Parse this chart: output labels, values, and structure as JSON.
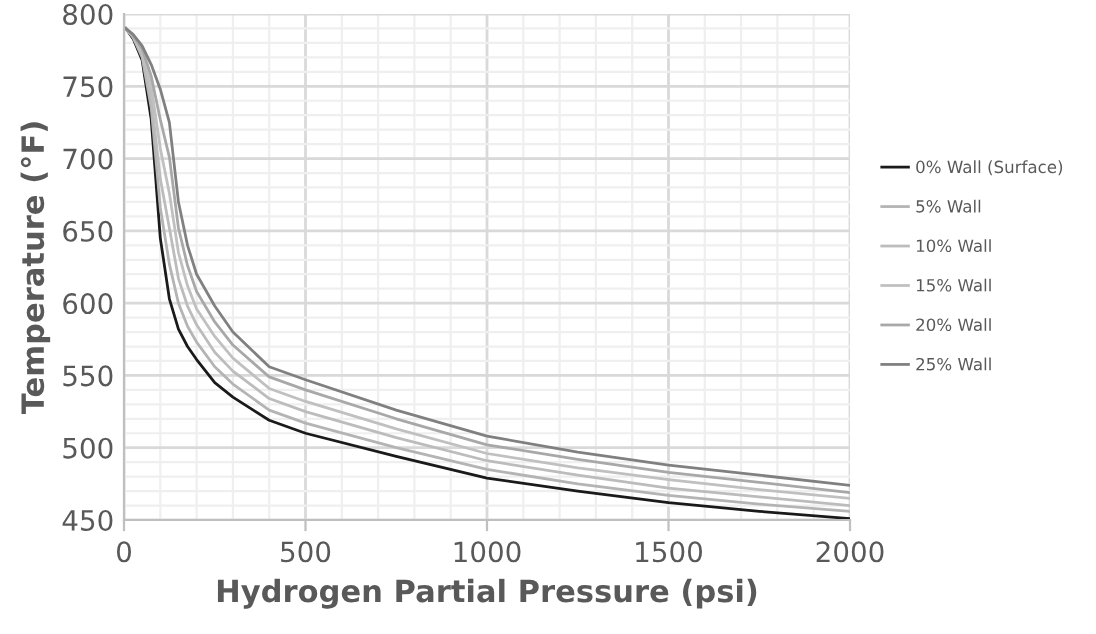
{
  "chart_data": {
    "type": "line",
    "xlabel": "Hydrogen Partial Pressure (psi)",
    "ylabel": "Temperature (°F)",
    "x": [
      5,
      25,
      50,
      75,
      100,
      125,
      150,
      175,
      200,
      250,
      300,
      400,
      500,
      750,
      1000,
      1250,
      1500,
      1750,
      2000
    ],
    "series": [
      {
        "name": "0% Wall (Surface)",
        "color": "#1a1a1a",
        "values": [
          790,
          783,
          768,
          727,
          645,
          603,
          582,
          570,
          561,
          545,
          535,
          519,
          510,
          494,
          479,
          470,
          462,
          456,
          451
        ]
      },
      {
        "name": "5% Wall",
        "color": "#b4b4b4",
        "values": [
          790,
          784,
          770,
          735,
          666,
          627,
          600,
          584,
          573,
          556,
          544,
          526,
          517,
          500,
          485,
          475,
          467,
          461,
          456
        ]
      },
      {
        "name": "10% Wall",
        "color": "#bcbcbc",
        "values": [
          790,
          784,
          772,
          742,
          686,
          652,
          617,
          598,
          585,
          566,
          553,
          534,
          525,
          507,
          491,
          481,
          472,
          466,
          460
        ]
      },
      {
        "name": "15% Wall",
        "color": "#c0c0c0",
        "values": [
          790,
          785,
          774,
          750,
          707,
          676,
          635,
          612,
          596,
          577,
          562,
          541,
          532,
          513,
          496,
          486,
          478,
          471,
          465
        ]
      },
      {
        "name": "20% Wall",
        "color": "#a8a8a8",
        "values": [
          790,
          785,
          776,
          757,
          727,
          701,
          652,
          626,
          608,
          587,
          571,
          549,
          540,
          520,
          502,
          492,
          483,
          476,
          469
        ]
      },
      {
        "name": "25% Wall",
        "color": "#808080",
        "values": [
          790,
          786,
          778,
          765,
          748,
          725,
          670,
          640,
          620,
          598,
          580,
          556,
          547,
          526,
          508,
          497,
          488,
          481,
          474
        ]
      }
    ],
    "xlim": [
      0,
      2000
    ],
    "xticks": [
      0,
      500,
      1000,
      1500,
      2000
    ],
    "ylim": [
      450,
      800
    ],
    "yticks": [
      450,
      500,
      550,
      600,
      650,
      700,
      750,
      800
    ],
    "grid": true,
    "legend": "right",
    "marker": "none",
    "line_style": "solid"
  }
}
